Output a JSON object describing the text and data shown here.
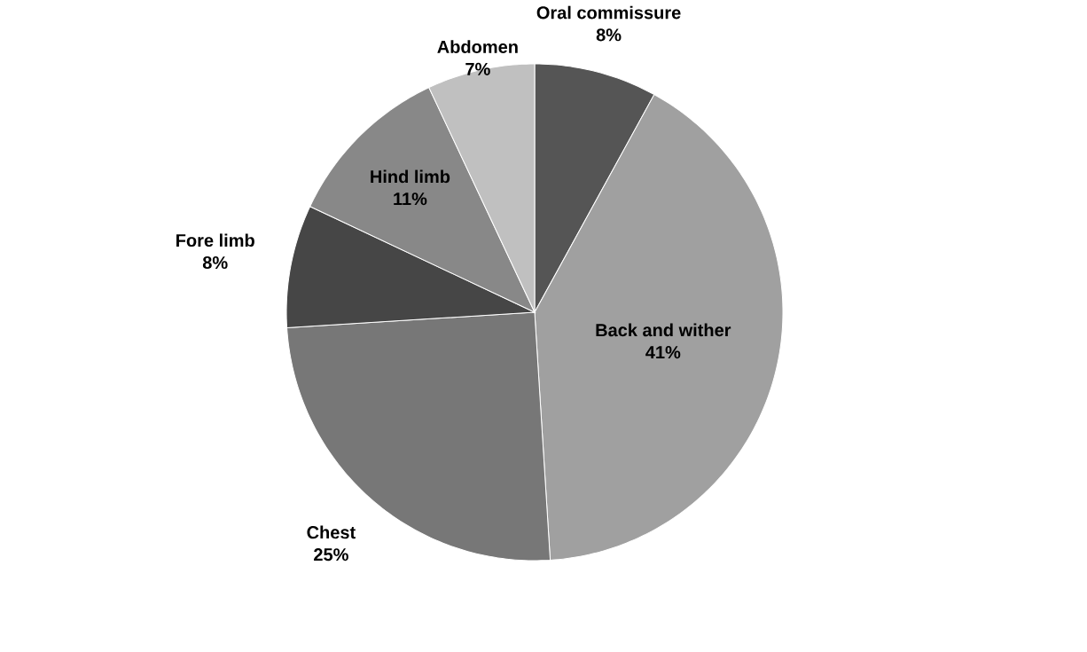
{
  "chart_data": {
    "type": "pie",
    "categories": [
      "Oral commissure",
      "Back and wither",
      "Chest",
      "Fore limb",
      "Hind limb",
      "Abdomen"
    ],
    "values": [
      8,
      41,
      25,
      8,
      11,
      7
    ],
    "value_labels": [
      "8%",
      "41%",
      "25%",
      "8%",
      "11%",
      "7%"
    ],
    "colors": [
      "#555555",
      "#a0a0a0",
      "#777777",
      "#464646",
      "#888888",
      "#c0c0c0"
    ]
  }
}
